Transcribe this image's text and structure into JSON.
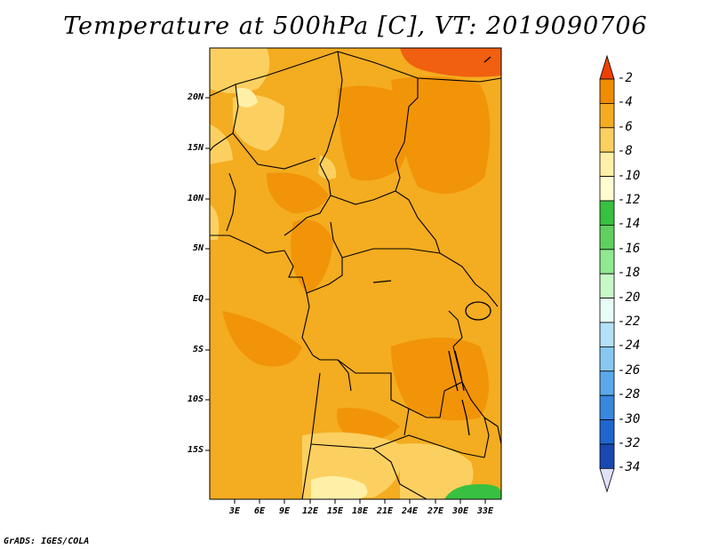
{
  "title": "Temperature at 500hPa [C], VT: 2019090706",
  "credit": "GrADS: IGES/COLA",
  "lat_labels": [
    "20N",
    "15N",
    "10N",
    "5N",
    "EQ",
    "5S",
    "10S",
    "15S"
  ],
  "lon_labels": [
    "3E",
    "6E",
    "9E",
    "12E",
    "15E",
    "18E",
    "21E",
    "24E",
    "27E",
    "30E",
    "33E"
  ],
  "colorbar": {
    "labels": [
      "-2",
      "-4",
      "-6",
      "-8",
      "-10",
      "-12",
      "-14",
      "-16",
      "-18",
      "-20",
      "-22",
      "-24",
      "-26",
      "-28",
      "-30",
      "-32",
      "-34"
    ],
    "colors": [
      "#f04000",
      "#f08c00",
      "#f4ac20",
      "#fcd060",
      "#fff0a8",
      "#fffcd0",
      "#38c040",
      "#60d060",
      "#90e890",
      "#c8f8c8",
      "#e8fcf8",
      "#b4e0f8",
      "#88c8f0",
      "#5ca8ec",
      "#3888e0",
      "#2066d0",
      "#1848b0",
      "#101880",
      "#e0e0f8"
    ],
    "top_triangle_color": "#f04000",
    "bottom_triangle_color": "#e0e0f8"
  },
  "map": {
    "background_color": "#f4ac20",
    "region": "Central Africa"
  }
}
